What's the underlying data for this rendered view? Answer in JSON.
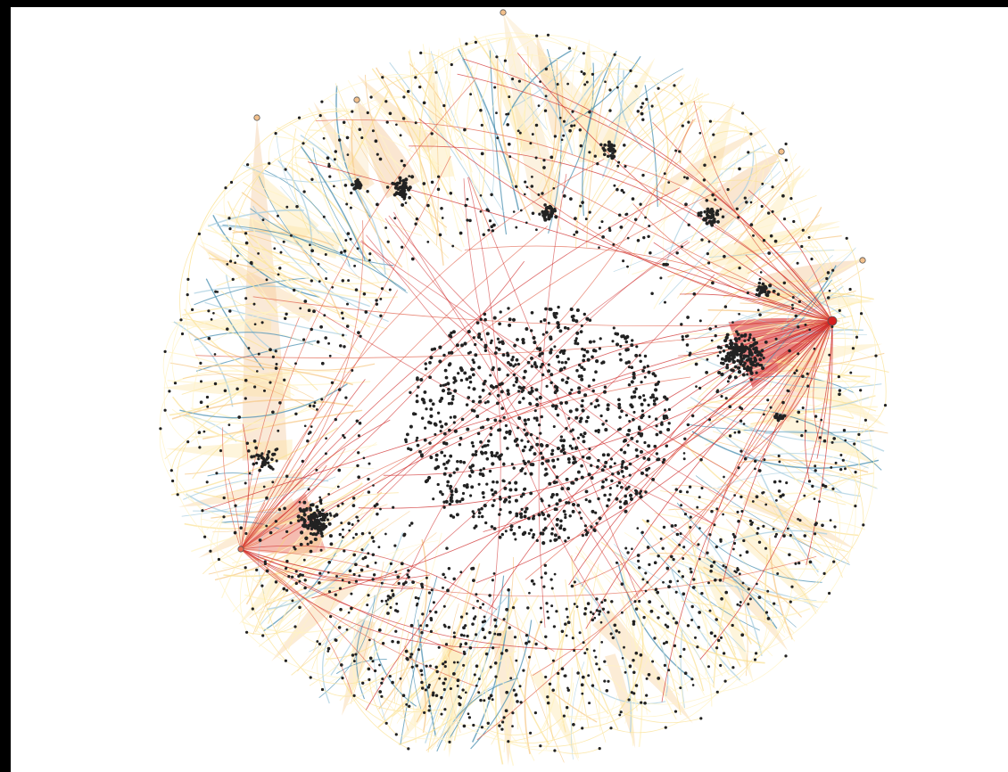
{
  "figure": {
    "kind": "network-graph",
    "layout": "radial",
    "background_color": "#ffffff",
    "border_color": "#000000",
    "node_color": "#222222",
    "edge_palette": [
      "#fff3c4",
      "#fbe39a",
      "#f7c98a",
      "#f4a582",
      "#e05a43",
      "#cc1f1f",
      "#a9cfe0",
      "#4a8fb0"
    ],
    "hub_colors": {
      "major": "#d51f1f",
      "secondary": "#e8694f",
      "minor": "#f2c08c"
    },
    "hubs": [
      {
        "name": "hub-right",
        "level": "major"
      },
      {
        "name": "hub-left",
        "level": "secondary"
      },
      {
        "name": "hub-top-left",
        "level": "minor"
      },
      {
        "name": "hub-top",
        "level": "minor"
      },
      {
        "name": "hub-top-right",
        "level": "minor"
      },
      {
        "name": "hub-right-upper",
        "level": "minor"
      },
      {
        "name": "hub-left-upper",
        "level": "minor"
      }
    ],
    "clusters": [
      {
        "name": "central-core"
      },
      {
        "name": "right-dense-cluster"
      },
      {
        "name": "left-dense-cluster"
      },
      {
        "name": "top-clusters"
      },
      {
        "name": "bottom-ring"
      }
    ]
  }
}
